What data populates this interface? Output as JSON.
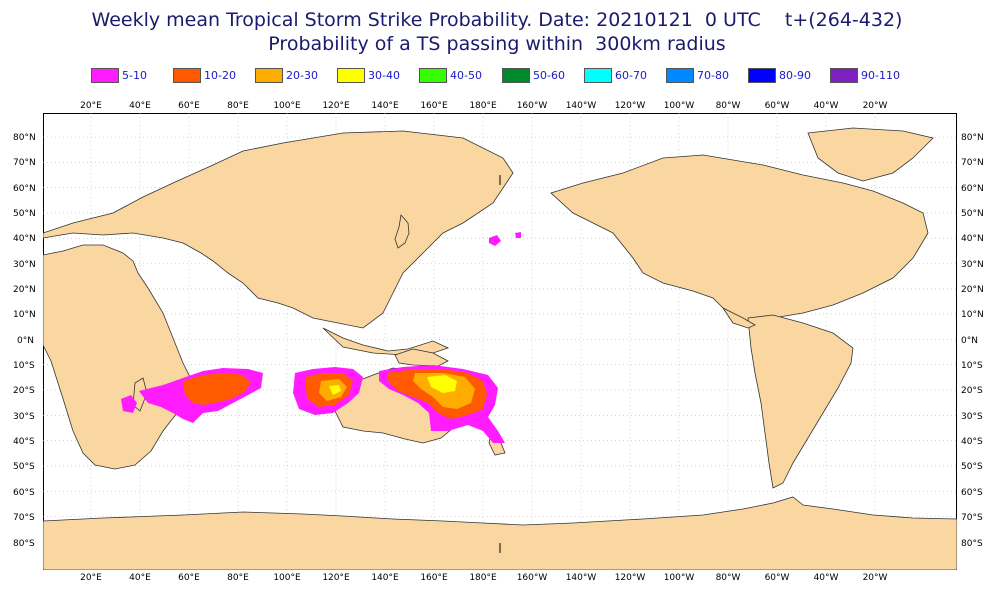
{
  "title": {
    "line1": "Weekly mean Tropical Storm Strike Probability. Date: 20210121  0 UTC    t+(264-432)",
    "line2": "Probability of a TS passing within  300km radius"
  },
  "legend": [
    {
      "label": "5-10",
      "color": "#ff1dff"
    },
    {
      "label": "10-20",
      "color": "#ff5a00"
    },
    {
      "label": "20-30",
      "color": "#ffac00"
    },
    {
      "label": "30-40",
      "color": "#ffff00"
    },
    {
      "label": "40-50",
      "color": "#33ff00"
    },
    {
      "label": "50-60",
      "color": "#008a2e"
    },
    {
      "label": "60-70",
      "color": "#00ffff"
    },
    {
      "label": "70-80",
      "color": "#0088ff"
    },
    {
      "label": "80-90",
      "color": "#0000ff"
    },
    {
      "label": "90-110",
      "color": "#7f1fbf"
    }
  ],
  "axes": {
    "lon_labels": [
      "20°E",
      "40°E",
      "60°E",
      "80°E",
      "100°E",
      "120°E",
      "140°E",
      "160°E",
      "180°E",
      "160°W",
      "140°W",
      "120°W",
      "100°W",
      "80°W",
      "60°W",
      "40°W",
      "20°W"
    ],
    "lat_labels": [
      "80°N",
      "70°N",
      "60°N",
      "50°N",
      "40°N",
      "30°N",
      "20°N",
      "10°N",
      "0°N",
      "10°S",
      "20°S",
      "30°S",
      "40°S",
      "50°S",
      "60°S",
      "70°S",
      "80°S"
    ]
  },
  "colors": {
    "land": "#fad7a0",
    "coast": "#333333",
    "grid": "#b8b8b8"
  }
}
